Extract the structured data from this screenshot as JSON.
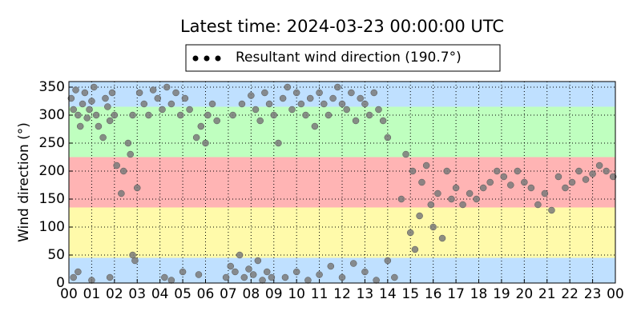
{
  "chart_data": {
    "type": "scatter",
    "title": "Latest time: 2024-03-23 00:00:00 UTC",
    "y_label": "Wind direction (°)",
    "legend_position": "upper center",
    "grid": true,
    "xlim": [
      0,
      24
    ],
    "xticks": [
      {
        "value": 0,
        "label": "00"
      },
      {
        "value": 1,
        "label": "01"
      },
      {
        "value": 2,
        "label": "02"
      },
      {
        "value": 3,
        "label": "03"
      },
      {
        "value": 4,
        "label": "04"
      },
      {
        "value": 5,
        "label": "05"
      },
      {
        "value": 6,
        "label": "06"
      },
      {
        "value": 7,
        "label": "07"
      },
      {
        "value": 8,
        "label": "08"
      },
      {
        "value": 9,
        "label": "09"
      },
      {
        "value": 10,
        "label": "10"
      },
      {
        "value": 11,
        "label": "11"
      },
      {
        "value": 12,
        "label": "12"
      },
      {
        "value": 13,
        "label": "13"
      },
      {
        "value": 14,
        "label": "14"
      },
      {
        "value": 15,
        "label": "15"
      },
      {
        "value": 16,
        "label": "16"
      },
      {
        "value": 17,
        "label": "17"
      },
      {
        "value": 18,
        "label": "18"
      },
      {
        "value": 19,
        "label": "19"
      },
      {
        "value": 20,
        "label": "20"
      },
      {
        "value": 21,
        "label": "21"
      },
      {
        "value": 22,
        "label": "22"
      },
      {
        "value": 23,
        "label": "23"
      },
      {
        "value": 24,
        "label": "00"
      }
    ],
    "ylim": [
      0,
      360
    ],
    "yticks": [
      0,
      50,
      100,
      150,
      200,
      250,
      300,
      350
    ],
    "bands": [
      {
        "from": 0,
        "to": 45,
        "color": "#bfe0ff"
      },
      {
        "from": 45,
        "to": 135,
        "color": "#fffaaa"
      },
      {
        "from": 135,
        "to": 225,
        "color": "#ffb4b4"
      },
      {
        "from": 225,
        "to": 315,
        "color": "#bfffbf"
      },
      {
        "from": 315,
        "to": 360,
        "color": "#bfe0ff"
      }
    ],
    "series": [
      {
        "name": "Resultant wind direction (190.7°)",
        "color": "#7a7a7a",
        "x": [
          0.1,
          0.2,
          0.3,
          0.4,
          0.5,
          0.6,
          0.7,
          0.8,
          0.9,
          1.0,
          1.1,
          1.2,
          1.3,
          1.5,
          1.6,
          1.7,
          1.8,
          1.9,
          2.0,
          0.2,
          0.4,
          1.0,
          1.8,
          2.1,
          2.3,
          2.4,
          2.6,
          2.7,
          2.8,
          2.9,
          2.8,
          3.0,
          3.1,
          3.3,
          3.5,
          3.7,
          3.9,
          4.1,
          4.3,
          4.5,
          4.7,
          4.9,
          5.1,
          5.3,
          4.2,
          4.5,
          5.0,
          5.7,
          5.6,
          5.8,
          6.0,
          6.1,
          6.3,
          6.5,
          6.9,
          7.1,
          7.3,
          7.5,
          7.7,
          7.9,
          8.1,
          8.3,
          8.5,
          8.7,
          8.9,
          7.2,
          7.6,
          8.0,
          8.2,
          8.4,
          8.6,
          8.8,
          9.0,
          9.2,
          9.4,
          9.6,
          9.8,
          10.0,
          10.2,
          10.4,
          10.6,
          10.8,
          11.0,
          11.2,
          11.4,
          11.6,
          11.8,
          12.0,
          12.2,
          12.4,
          12.6,
          12.8,
          13.0,
          13.2,
          13.4,
          13.6,
          13.8,
          14.0,
          9.5,
          10.0,
          10.5,
          11.0,
          11.5,
          12.0,
          12.5,
          13.0,
          13.5,
          14.0,
          14.3,
          14.6,
          14.8,
          15.0,
          15.1,
          15.2,
          15.4,
          15.5,
          15.7,
          15.9,
          16.0,
          16.2,
          16.4,
          16.6,
          16.8,
          17.0,
          17.3,
          17.6,
          17.9,
          18.2,
          18.5,
          18.8,
          19.1,
          19.4,
          19.7,
          20.0,
          20.3,
          20.6,
          20.9,
          21.2,
          21.5,
          21.8,
          22.1,
          22.4,
          22.7,
          23.0,
          23.3,
          23.6,
          23.9
        ],
        "values": [
          330,
          310,
          345,
          300,
          280,
          320,
          340,
          295,
          310,
          325,
          350,
          300,
          280,
          260,
          330,
          315,
          290,
          340,
          300,
          10,
          20,
          5,
          10,
          210,
          160,
          200,
          250,
          230,
          300,
          40,
          50,
          170,
          340,
          320,
          300,
          345,
          330,
          310,
          350,
          320,
          340,
          300,
          330,
          310,
          10,
          5,
          20,
          15,
          260,
          280,
          250,
          300,
          320,
          290,
          10,
          30,
          20,
          50,
          10,
          25,
          15,
          40,
          5,
          20,
          10,
          300,
          320,
          335,
          310,
          290,
          340,
          320,
          300,
          250,
          330,
          350,
          310,
          340,
          320,
          300,
          330,
          280,
          340,
          320,
          300,
          330,
          350,
          320,
          310,
          340,
          290,
          330,
          320,
          300,
          340,
          310,
          290,
          260,
          10,
          20,
          5,
          15,
          30,
          10,
          35,
          20,
          5,
          40,
          10,
          150,
          230,
          90,
          200,
          60,
          120,
          180,
          210,
          140,
          100,
          160,
          80,
          200,
          150,
          170,
          140,
          160,
          150,
          170,
          180,
          200,
          190,
          175,
          200,
          180,
          170,
          140,
          160,
          130,
          190,
          170,
          180,
          200,
          185,
          195,
          210,
          200,
          190
        ]
      }
    ]
  }
}
